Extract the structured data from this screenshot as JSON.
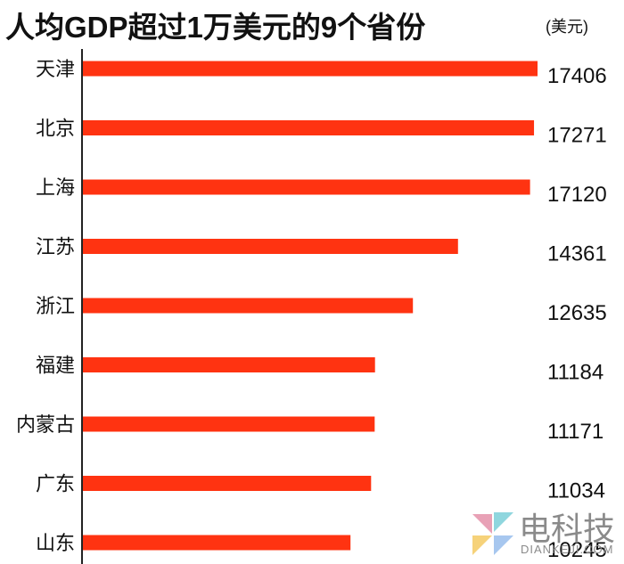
{
  "chart_data": {
    "type": "bar",
    "orientation": "horizontal",
    "title": "人均GDP超过1万美元的9个省份",
    "unit": "(美元)",
    "categories": [
      "天津",
      "北京",
      "上海",
      "江苏",
      "浙江",
      "福建",
      "内蒙古",
      "广东",
      "山东"
    ],
    "values": [
      17406,
      17271,
      17120,
      14361,
      12635,
      11184,
      11171,
      11034,
      10245
    ],
    "value_labels": [
      "17406",
      "17271",
      "17120",
      "14361",
      "12635",
      "11184",
      "11171",
      "11034",
      "10245"
    ],
    "xlim": [
      0,
      17406
    ],
    "grid": false,
    "bar_color": "#ff3311"
  },
  "watermark": {
    "text": "电科技",
    "subtext": "DIANKEJI.COM",
    "icon": "dian-keji-logo-icon",
    "colors": [
      "#e8a1b6",
      "#8fd6de",
      "#f6d27a",
      "#a7c7ef"
    ]
  }
}
